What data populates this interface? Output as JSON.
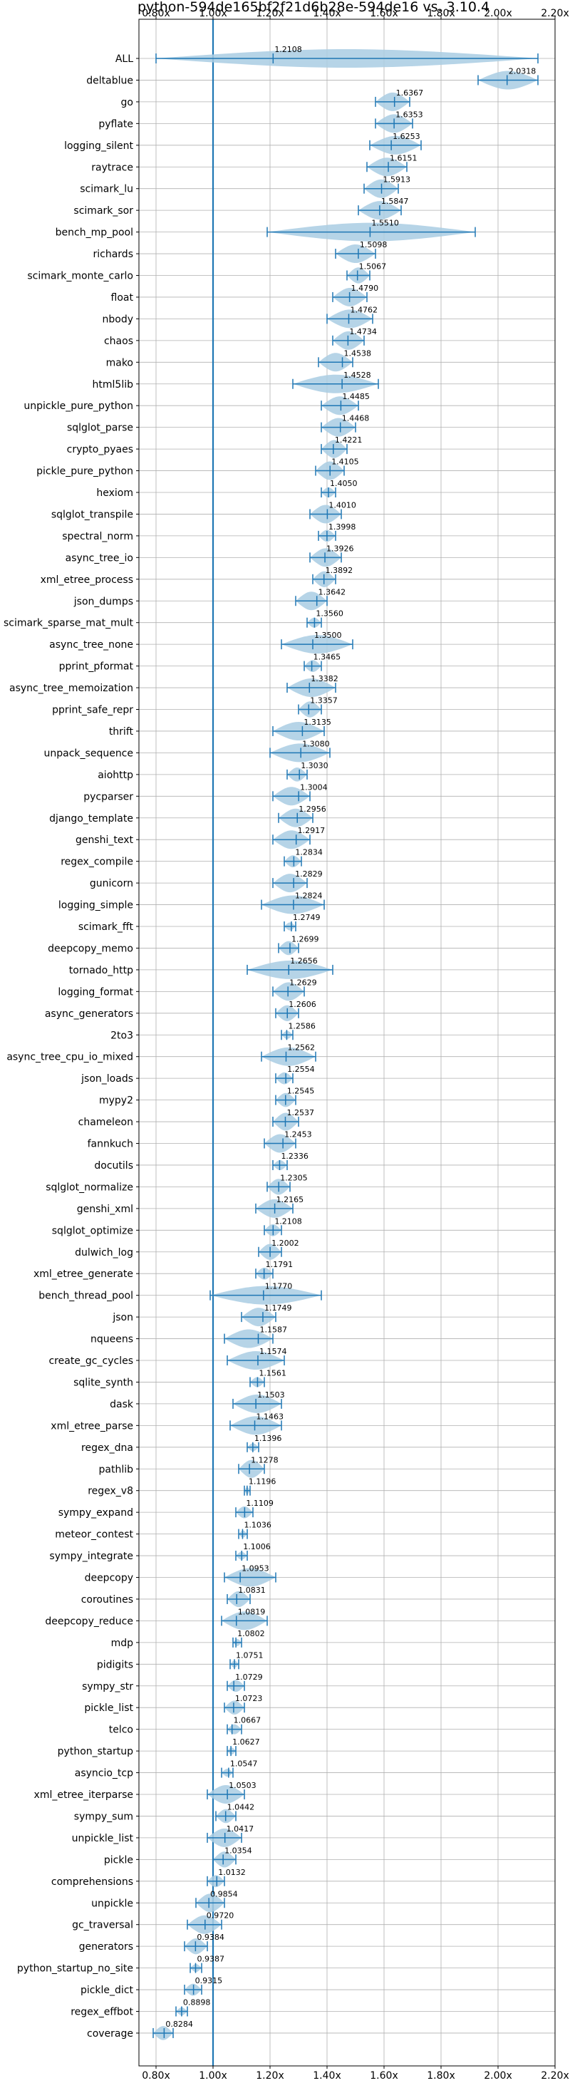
{
  "chart_data": {
    "type": "violin",
    "title": "python-594de165bf2f21d6b28e-594de16 vs. 3.10.4",
    "xlabel": "",
    "ylabel": "",
    "xlim": [
      0.74,
      2.2
    ],
    "x_ticks": [
      0.8,
      1.0,
      1.2,
      1.4,
      1.6,
      1.8,
      2.0,
      2.2
    ],
    "x_tick_labels": [
      "0.80x",
      "1.00x",
      "1.20x",
      "1.40x",
      "1.60x",
      "1.80x",
      "2.00x",
      "2.20x"
    ],
    "reference_line": 1.0,
    "grid": true,
    "colors": {
      "violin": "#a9cce3",
      "line": "#1f77b4",
      "grid": "#b0b0b0"
    },
    "series": [
      {
        "name": "ALL",
        "label": "1.2108",
        "median": 1.2108,
        "min": 0.8,
        "max": 2.14
      },
      {
        "name": "deltablue",
        "label": "2.0318",
        "median": 2.0318,
        "min": 1.93,
        "max": 2.14
      },
      {
        "name": "go",
        "label": "1.6367",
        "median": 1.6367,
        "min": 1.57,
        "max": 1.69
      },
      {
        "name": "pyflate",
        "label": "1.6353",
        "median": 1.6353,
        "min": 1.57,
        "max": 1.7
      },
      {
        "name": "logging_silent",
        "label": "1.6253",
        "median": 1.6253,
        "min": 1.55,
        "max": 1.73
      },
      {
        "name": "raytrace",
        "label": "1.6151",
        "median": 1.6151,
        "min": 1.54,
        "max": 1.68
      },
      {
        "name": "scimark_lu",
        "label": "1.5913",
        "median": 1.5913,
        "min": 1.53,
        "max": 1.65
      },
      {
        "name": "scimark_sor",
        "label": "1.5847",
        "median": 1.5847,
        "min": 1.51,
        "max": 1.66
      },
      {
        "name": "bench_mp_pool",
        "label": "1.5510",
        "median": 1.551,
        "min": 1.19,
        "max": 1.92
      },
      {
        "name": "richards",
        "label": "1.5098",
        "median": 1.5098,
        "min": 1.43,
        "max": 1.57
      },
      {
        "name": "scimark_monte_carlo",
        "label": "1.5067",
        "median": 1.5067,
        "min": 1.47,
        "max": 1.55
      },
      {
        "name": "float",
        "label": "1.4790",
        "median": 1.479,
        "min": 1.42,
        "max": 1.54
      },
      {
        "name": "nbody",
        "label": "1.4762",
        "median": 1.4762,
        "min": 1.4,
        "max": 1.56
      },
      {
        "name": "chaos",
        "label": "1.4734",
        "median": 1.4734,
        "min": 1.42,
        "max": 1.53
      },
      {
        "name": "mako",
        "label": "1.4538",
        "median": 1.4538,
        "min": 1.37,
        "max": 1.49
      },
      {
        "name": "html5lib",
        "label": "1.4528",
        "median": 1.4528,
        "min": 1.28,
        "max": 1.58
      },
      {
        "name": "unpickle_pure_python",
        "label": "1.4485",
        "median": 1.4485,
        "min": 1.38,
        "max": 1.51
      },
      {
        "name": "sqlglot_parse",
        "label": "1.4468",
        "median": 1.4468,
        "min": 1.38,
        "max": 1.5
      },
      {
        "name": "crypto_pyaes",
        "label": "1.4221",
        "median": 1.4221,
        "min": 1.38,
        "max": 1.47
      },
      {
        "name": "pickle_pure_python",
        "label": "1.4105",
        "median": 1.4105,
        "min": 1.36,
        "max": 1.46
      },
      {
        "name": "hexiom",
        "label": "1.4050",
        "median": 1.405,
        "min": 1.38,
        "max": 1.43
      },
      {
        "name": "sqlglot_transpile",
        "label": "1.4010",
        "median": 1.401,
        "min": 1.34,
        "max": 1.45
      },
      {
        "name": "spectral_norm",
        "label": "1.3998",
        "median": 1.3998,
        "min": 1.37,
        "max": 1.43
      },
      {
        "name": "async_tree_io",
        "label": "1.3926",
        "median": 1.3926,
        "min": 1.34,
        "max": 1.45
      },
      {
        "name": "xml_etree_process",
        "label": "1.3892",
        "median": 1.3892,
        "min": 1.35,
        "max": 1.43
      },
      {
        "name": "json_dumps",
        "label": "1.3642",
        "median": 1.3642,
        "min": 1.29,
        "max": 1.4
      },
      {
        "name": "scimark_sparse_mat_mult",
        "label": "1.3560",
        "median": 1.356,
        "min": 1.33,
        "max": 1.38
      },
      {
        "name": "async_tree_none",
        "label": "1.3500",
        "median": 1.35,
        "min": 1.24,
        "max": 1.49
      },
      {
        "name": "pprint_pformat",
        "label": "1.3465",
        "median": 1.3465,
        "min": 1.32,
        "max": 1.38
      },
      {
        "name": "async_tree_memoization",
        "label": "1.3382",
        "median": 1.3382,
        "min": 1.26,
        "max": 1.43
      },
      {
        "name": "pprint_safe_repr",
        "label": "1.3357",
        "median": 1.3357,
        "min": 1.3,
        "max": 1.38
      },
      {
        "name": "thrift",
        "label": "1.3135",
        "median": 1.3135,
        "min": 1.21,
        "max": 1.39
      },
      {
        "name": "unpack_sequence",
        "label": "1.3080",
        "median": 1.308,
        "min": 1.2,
        "max": 1.41
      },
      {
        "name": "aiohttp",
        "label": "1.3030",
        "median": 1.303,
        "min": 1.26,
        "max": 1.33
      },
      {
        "name": "pycparser",
        "label": "1.3004",
        "median": 1.3004,
        "min": 1.21,
        "max": 1.34
      },
      {
        "name": "django_template",
        "label": "1.2956",
        "median": 1.2956,
        "min": 1.23,
        "max": 1.35
      },
      {
        "name": "genshi_text",
        "label": "1.2917",
        "median": 1.2917,
        "min": 1.21,
        "max": 1.34
      },
      {
        "name": "regex_compile",
        "label": "1.2834",
        "median": 1.2834,
        "min": 1.25,
        "max": 1.31
      },
      {
        "name": "gunicorn",
        "label": "1.2829",
        "median": 1.2829,
        "min": 1.21,
        "max": 1.33
      },
      {
        "name": "logging_simple",
        "label": "1.2824",
        "median": 1.2824,
        "min": 1.17,
        "max": 1.39
      },
      {
        "name": "scimark_fft",
        "label": "1.2749",
        "median": 1.2749,
        "min": 1.25,
        "max": 1.29
      },
      {
        "name": "deepcopy_memo",
        "label": "1.2699",
        "median": 1.2699,
        "min": 1.23,
        "max": 1.3
      },
      {
        "name": "tornado_http",
        "label": "1.2656",
        "median": 1.2656,
        "min": 1.12,
        "max": 1.42
      },
      {
        "name": "logging_format",
        "label": "1.2629",
        "median": 1.2629,
        "min": 1.21,
        "max": 1.32
      },
      {
        "name": "async_generators",
        "label": "1.2606",
        "median": 1.2606,
        "min": 1.22,
        "max": 1.3
      },
      {
        "name": "2to3",
        "label": "1.2586",
        "median": 1.2586,
        "min": 1.24,
        "max": 1.28
      },
      {
        "name": "async_tree_cpu_io_mixed",
        "label": "1.2562",
        "median": 1.2562,
        "min": 1.17,
        "max": 1.36
      },
      {
        "name": "json_loads",
        "label": "1.2554",
        "median": 1.2554,
        "min": 1.22,
        "max": 1.28
      },
      {
        "name": "mypy2",
        "label": "1.2545",
        "median": 1.2545,
        "min": 1.22,
        "max": 1.29
      },
      {
        "name": "chameleon",
        "label": "1.2537",
        "median": 1.2537,
        "min": 1.21,
        "max": 1.3
      },
      {
        "name": "fannkuch",
        "label": "1.2453",
        "median": 1.2453,
        "min": 1.18,
        "max": 1.29
      },
      {
        "name": "docutils",
        "label": "1.2336",
        "median": 1.2336,
        "min": 1.21,
        "max": 1.26
      },
      {
        "name": "sqlglot_normalize",
        "label": "1.2305",
        "median": 1.2305,
        "min": 1.19,
        "max": 1.27
      },
      {
        "name": "genshi_xml",
        "label": "1.2165",
        "median": 1.2165,
        "min": 1.15,
        "max": 1.28
      },
      {
        "name": "sqlglot_optimize",
        "label": "1.2108",
        "median": 1.2108,
        "min": 1.18,
        "max": 1.24
      },
      {
        "name": "dulwich_log",
        "label": "1.2002",
        "median": 1.2002,
        "min": 1.16,
        "max": 1.24
      },
      {
        "name": "xml_etree_generate",
        "label": "1.1791",
        "median": 1.1791,
        "min": 1.15,
        "max": 1.21
      },
      {
        "name": "bench_thread_pool",
        "label": "1.1770",
        "median": 1.177,
        "min": 0.99,
        "max": 1.38
      },
      {
        "name": "json",
        "label": "1.1749",
        "median": 1.1749,
        "min": 1.1,
        "max": 1.22
      },
      {
        "name": "nqueens",
        "label": "1.1587",
        "median": 1.1587,
        "min": 1.04,
        "max": 1.21
      },
      {
        "name": "create_gc_cycles",
        "label": "1.1574",
        "median": 1.1574,
        "min": 1.05,
        "max": 1.25
      },
      {
        "name": "sqlite_synth",
        "label": "1.1561",
        "median": 1.1561,
        "min": 1.13,
        "max": 1.18
      },
      {
        "name": "dask",
        "label": "1.1503",
        "median": 1.1503,
        "min": 1.07,
        "max": 1.24
      },
      {
        "name": "xml_etree_parse",
        "label": "1.1463",
        "median": 1.1463,
        "min": 1.06,
        "max": 1.24
      },
      {
        "name": "regex_dna",
        "label": "1.1396",
        "median": 1.1396,
        "min": 1.12,
        "max": 1.16
      },
      {
        "name": "pathlib",
        "label": "1.1278",
        "median": 1.1278,
        "min": 1.09,
        "max": 1.18
      },
      {
        "name": "regex_v8",
        "label": "1.1196",
        "median": 1.1196,
        "min": 1.11,
        "max": 1.13
      },
      {
        "name": "sympy_expand",
        "label": "1.1109",
        "median": 1.1109,
        "min": 1.08,
        "max": 1.14
      },
      {
        "name": "meteor_contest",
        "label": "1.1036",
        "median": 1.1036,
        "min": 1.09,
        "max": 1.12
      },
      {
        "name": "sympy_integrate",
        "label": "1.1006",
        "median": 1.1006,
        "min": 1.08,
        "max": 1.12
      },
      {
        "name": "deepcopy",
        "label": "1.0953",
        "median": 1.0953,
        "min": 1.04,
        "max": 1.22
      },
      {
        "name": "coroutines",
        "label": "1.0831",
        "median": 1.0831,
        "min": 1.05,
        "max": 1.13
      },
      {
        "name": "deepcopy_reduce",
        "label": "1.0819",
        "median": 1.0819,
        "min": 1.03,
        "max": 1.19
      },
      {
        "name": "mdp",
        "label": "1.0802",
        "median": 1.0802,
        "min": 1.07,
        "max": 1.1
      },
      {
        "name": "pidigits",
        "label": "1.0751",
        "median": 1.0751,
        "min": 1.06,
        "max": 1.09
      },
      {
        "name": "sympy_str",
        "label": "1.0729",
        "median": 1.0729,
        "min": 1.05,
        "max": 1.11
      },
      {
        "name": "pickle_list",
        "label": "1.0723",
        "median": 1.0723,
        "min": 1.04,
        "max": 1.11
      },
      {
        "name": "telco",
        "label": "1.0667",
        "median": 1.0667,
        "min": 1.05,
        "max": 1.1
      },
      {
        "name": "python_startup",
        "label": "1.0627",
        "median": 1.0627,
        "min": 1.05,
        "max": 1.08
      },
      {
        "name": "asyncio_tcp",
        "label": "1.0547",
        "median": 1.0547,
        "min": 1.03,
        "max": 1.07
      },
      {
        "name": "xml_etree_iterparse",
        "label": "1.0503",
        "median": 1.0503,
        "min": 0.98,
        "max": 1.11
      },
      {
        "name": "sympy_sum",
        "label": "1.0442",
        "median": 1.0442,
        "min": 1.01,
        "max": 1.08
      },
      {
        "name": "unpickle_list",
        "label": "1.0417",
        "median": 1.0417,
        "min": 0.98,
        "max": 1.1
      },
      {
        "name": "pickle",
        "label": "1.0354",
        "median": 1.0354,
        "min": 1.0,
        "max": 1.08
      },
      {
        "name": "comprehensions",
        "label": "1.0132",
        "median": 1.0132,
        "min": 0.98,
        "max": 1.04
      },
      {
        "name": "unpickle",
        "label": "0.9854",
        "median": 0.9854,
        "min": 0.94,
        "max": 1.04
      },
      {
        "name": "gc_traversal",
        "label": "0.9720",
        "median": 0.972,
        "min": 0.91,
        "max": 1.03
      },
      {
        "name": "generators",
        "label": "0.9384",
        "median": 0.9384,
        "min": 0.9,
        "max": 0.98
      },
      {
        "name": "python_startup_no_site",
        "label": "0.9387",
        "median": 0.9387,
        "min": 0.92,
        "max": 0.96
      },
      {
        "name": "pickle_dict",
        "label": "0.9315",
        "median": 0.9315,
        "min": 0.9,
        "max": 0.96
      },
      {
        "name": "regex_effbot",
        "label": "0.8898",
        "median": 0.8898,
        "min": 0.87,
        "max": 0.91
      },
      {
        "name": "coverage",
        "label": "0.8284",
        "median": 0.8284,
        "min": 0.79,
        "max": 0.86
      }
    ]
  }
}
